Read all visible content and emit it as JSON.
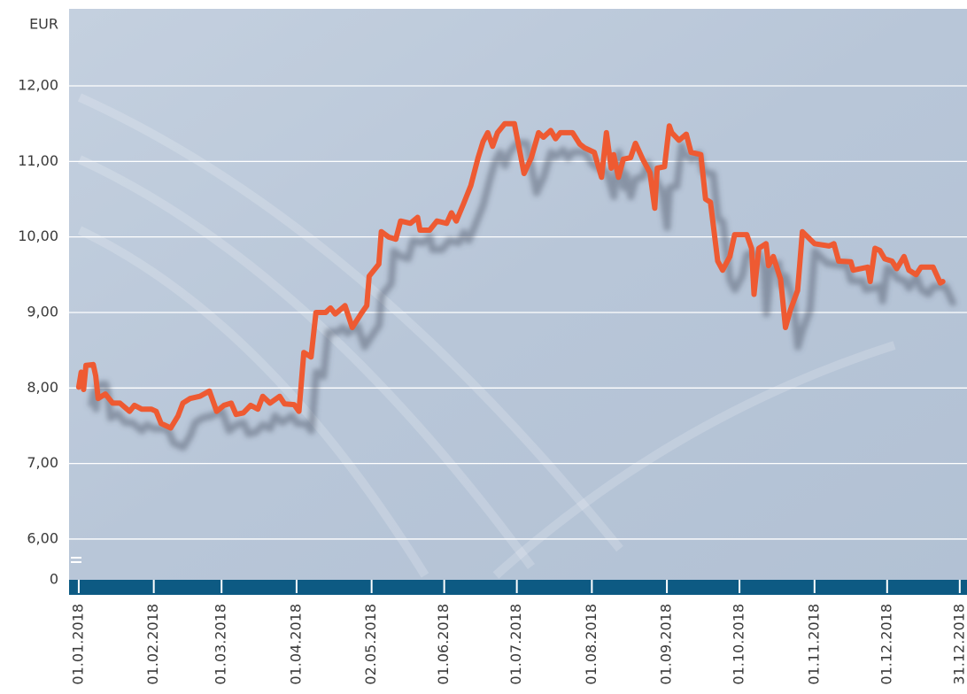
{
  "chart_data": {
    "type": "line",
    "y_label": "EUR",
    "y_break_label": "0",
    "color": "#ee5a32",
    "grid": true,
    "ylim": [
      5.46,
      13.02
    ],
    "yticks": [
      {
        "value": 6,
        "label": "6,00"
      },
      {
        "value": 7,
        "label": "7,00"
      },
      {
        "value": 8,
        "label": "8,00"
      },
      {
        "value": 9,
        "label": "9,00"
      },
      {
        "value": 10,
        "label": "10,00"
      },
      {
        "value": 11,
        "label": "11,00"
      },
      {
        "value": 12,
        "label": "12,00"
      }
    ],
    "xlim": [
      "2017-12-28",
      "2019-01-03"
    ],
    "xticks": [
      {
        "value": "2018-01-01",
        "label": "01.01.2018"
      },
      {
        "value": "2018-02-01",
        "label": "01.02.2018"
      },
      {
        "value": "2018-03-01",
        "label": "01.03.2018"
      },
      {
        "value": "2018-04-01",
        "label": "01.04.2018"
      },
      {
        "value": "2018-05-02",
        "label": "02.05.2018"
      },
      {
        "value": "2018-06-01",
        "label": "01.06.2018"
      },
      {
        "value": "2018-07-01",
        "label": "01.07.2018"
      },
      {
        "value": "2018-08-01",
        "label": "01.08.2018"
      },
      {
        "value": "2018-09-01",
        "label": "01.09.2018"
      },
      {
        "value": "2018-10-01",
        "label": "01.10.2018"
      },
      {
        "value": "2018-11-01",
        "label": "01.11.2018"
      },
      {
        "value": "2018-12-01",
        "label": "01.12.2018"
      },
      {
        "value": "2018-12-31",
        "label": "31.12.2018"
      }
    ],
    "x": [
      "2018-01-01",
      "2018-01-02",
      "2018-01-03",
      "2018-01-04",
      "2018-01-07",
      "2018-01-08",
      "2018-01-09",
      "2018-01-12",
      "2018-01-15",
      "2018-01-18",
      "2018-01-22",
      "2018-01-24",
      "2018-01-27",
      "2018-01-31",
      "2018-02-02",
      "2018-02-04",
      "2018-02-08",
      "2018-02-11",
      "2018-02-13",
      "2018-02-16",
      "2018-02-20",
      "2018-02-24",
      "2018-02-27",
      "2018-03-02",
      "2018-03-05",
      "2018-03-07",
      "2018-03-10",
      "2018-03-13",
      "2018-03-16",
      "2018-03-18",
      "2018-03-21",
      "2018-03-25",
      "2018-03-27",
      "2018-03-31",
      "2018-04-02",
      "2018-04-04",
      "2018-04-07",
      "2018-04-09",
      "2018-04-13",
      "2018-04-15",
      "2018-04-17",
      "2018-04-21",
      "2018-04-24",
      "2018-04-28",
      "2018-04-30",
      "2018-05-01",
      "2018-05-05",
      "2018-05-06",
      "2018-05-09",
      "2018-05-12",
      "2018-05-14",
      "2018-05-18",
      "2018-05-21",
      "2018-05-22",
      "2018-05-26",
      "2018-05-29",
      "2018-06-02",
      "2018-06-04",
      "2018-06-06",
      "2018-06-09",
      "2018-06-12",
      "2018-06-15",
      "2018-06-17",
      "2018-06-19",
      "2018-06-21",
      "2018-06-23",
      "2018-06-26",
      "2018-06-30",
      "2018-07-04",
      "2018-07-07",
      "2018-07-10",
      "2018-07-12",
      "2018-07-15",
      "2018-07-17",
      "2018-07-19",
      "2018-07-24",
      "2018-07-27",
      "2018-07-29",
      "2018-08-02",
      "2018-08-05",
      "2018-08-07",
      "2018-08-09",
      "2018-08-10",
      "2018-08-12",
      "2018-08-14",
      "2018-08-17",
      "2018-08-19",
      "2018-08-22",
      "2018-08-25",
      "2018-08-27",
      "2018-08-28",
      "2018-08-31",
      "2018-09-02",
      "2018-09-03",
      "2018-09-06",
      "2018-09-09",
      "2018-09-11",
      "2018-09-15",
      "2018-09-17",
      "2018-09-19",
      "2018-09-22",
      "2018-09-24",
      "2018-09-27",
      "2018-09-29",
      "2018-10-04",
      "2018-10-06",
      "2018-10-07",
      "2018-10-09",
      "2018-10-12",
      "2018-10-13",
      "2018-10-15",
      "2018-10-18",
      "2018-10-20",
      "2018-10-22",
      "2018-10-25",
      "2018-10-26",
      "2018-10-27",
      "2018-11-01",
      "2018-11-07",
      "2018-11-09",
      "2018-11-11",
      "2018-11-16",
      "2018-11-17",
      "2018-11-23",
      "2018-11-24",
      "2018-11-26",
      "2018-11-28",
      "2018-11-30",
      "2018-12-03",
      "2018-12-05",
      "2018-12-08",
      "2018-12-10",
      "2018-12-13",
      "2018-12-15",
      "2018-12-20",
      "2018-12-23",
      "2018-12-24"
    ],
    "values": [
      8.01,
      8.21,
      7.98,
      8.3,
      8.31,
      8.16,
      7.86,
      7.92,
      7.8,
      7.8,
      7.69,
      7.77,
      7.72,
      7.72,
      7.69,
      7.53,
      7.47,
      7.63,
      7.8,
      7.86,
      7.89,
      7.96,
      7.69,
      7.77,
      7.8,
      7.65,
      7.67,
      7.77,
      7.72,
      7.89,
      7.8,
      7.89,
      7.79,
      7.78,
      7.69,
      8.47,
      8.41,
      9.0,
      9.0,
      9.06,
      8.98,
      9.09,
      8.8,
      9.0,
      9.09,
      9.48,
      9.64,
      10.07,
      10.0,
      9.97,
      10.21,
      10.18,
      10.26,
      10.09,
      10.09,
      10.21,
      10.18,
      10.32,
      10.21,
      10.44,
      10.68,
      11.05,
      11.26,
      11.38,
      11.2,
      11.38,
      11.5,
      11.5,
      10.84,
      11.05,
      11.38,
      11.32,
      11.41,
      11.3,
      11.38,
      11.38,
      11.23,
      11.18,
      11.12,
      10.79,
      11.38,
      10.91,
      11.09,
      10.79,
      11.03,
      11.05,
      11.24,
      11.03,
      10.85,
      10.38,
      10.91,
      10.93,
      11.47,
      11.38,
      11.28,
      11.36,
      11.12,
      11.09,
      10.5,
      10.46,
      9.68,
      9.56,
      9.74,
      10.03,
      10.03,
      9.85,
      9.24,
      9.85,
      9.91,
      9.62,
      9.74,
      9.44,
      8.8,
      9.03,
      9.29,
      9.68,
      10.07,
      9.91,
      9.88,
      9.91,
      9.68,
      9.67,
      9.56,
      9.6,
      9.41,
      9.85,
      9.82,
      9.71,
      9.68,
      9.58,
      9.74,
      9.56,
      9.5,
      9.6,
      9.6,
      9.39,
      9.41
    ]
  }
}
